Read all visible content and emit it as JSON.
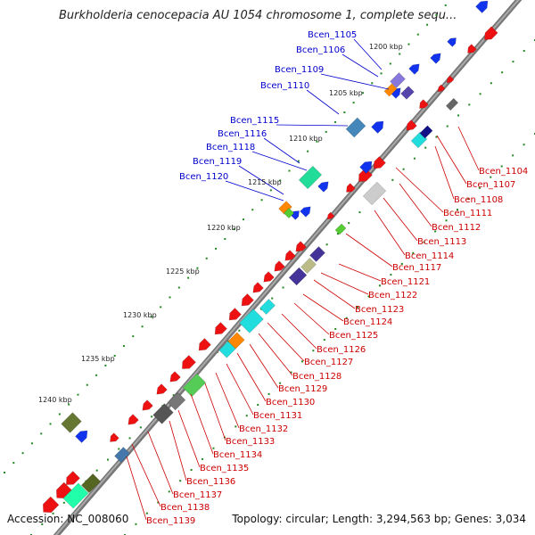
{
  "title": "Burkholderia cenocepacia AU 1054 chromosome 1, complete sequ...",
  "accession": "Accession: NC_008060",
  "topology": "Topology: circular; Length: 3,294,563 bp; Genes: 3,034",
  "kbp_ticks": [
    "1200 kbp",
    "1205 kbp",
    "1210 kbp",
    "1215 kbp",
    "1220 kbp",
    "1225 kbp",
    "1230 kbp",
    "1235 kbp",
    "1240 kbp"
  ],
  "outer_genes": [
    "Bcen_1105",
    "Bcen_1106",
    "Bcen_1109",
    "Bcen_1110",
    "Bcen_1115",
    "Bcen_1116",
    "Bcen_1118",
    "Bcen_1119",
    "Bcen_1120"
  ],
  "inner_genes": [
    "Bcen_1104",
    "Bcen_1107",
    "Bcen_1108",
    "Bcen_1111",
    "Bcen_1112",
    "Bcen_1113",
    "Bcen_1114",
    "Bcen_1117",
    "Bcen_1121",
    "Bcen_1122",
    "Bcen_1123",
    "Bcen_1124",
    "Bcen_1125",
    "Bcen_1126",
    "Bcen_1127",
    "Bcen_1128",
    "Bcen_1129",
    "Bcen_1130",
    "Bcen_1131",
    "Bcen_1132",
    "Bcen_1133",
    "Bcen_1134",
    "Bcen_1135",
    "Bcen_1136",
    "Bcen_1137",
    "Bcen_1138",
    "Bcen_1139"
  ],
  "colors": {
    "backbone": "#8a8a8a",
    "outer_label": "#0000cc",
    "inner_label": "#cc0000",
    "forward_gene": "#ee1111",
    "reverse_gene": "#1133ee",
    "tick": "#228822"
  }
}
